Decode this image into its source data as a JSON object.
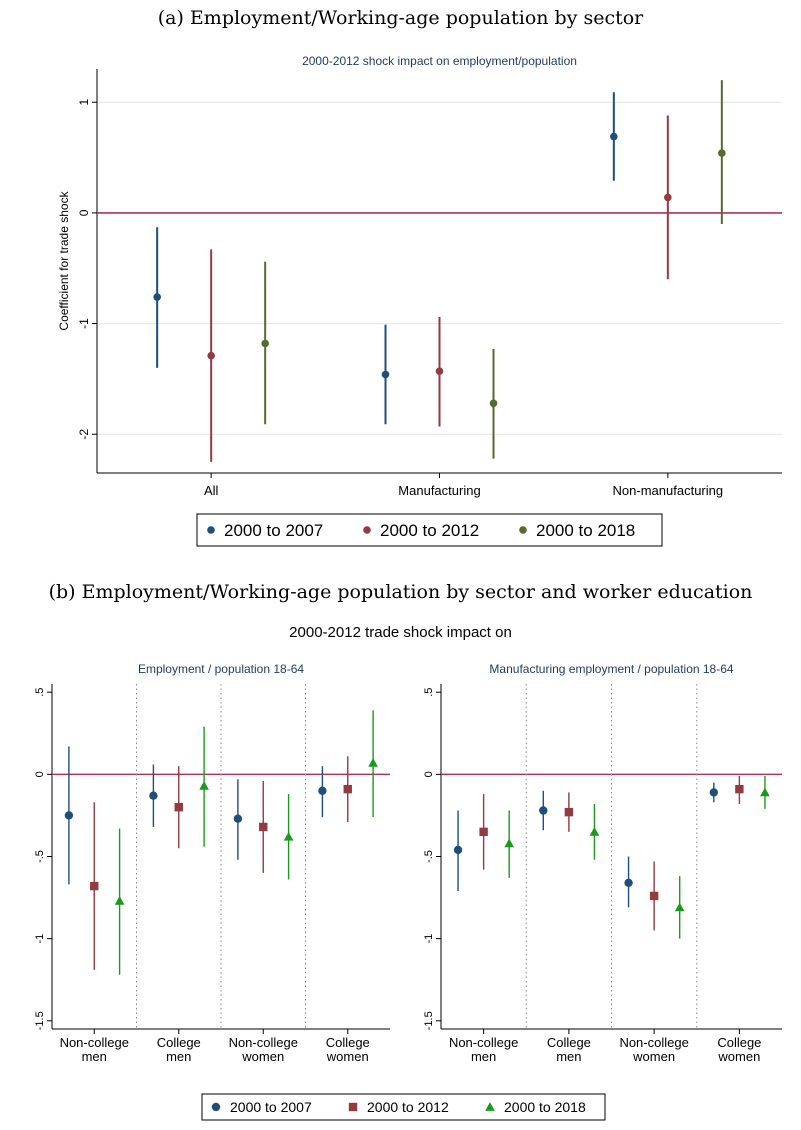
{
  "panel_a": {
    "caption": "(a) Employment/Working-age population by sector",
    "legend": [
      {
        "label": "2000 to 2007",
        "marker": "circle"
      },
      {
        "label": "2000 to 2012",
        "marker": "circle"
      },
      {
        "label": "2000 to 2018",
        "marker": "circle"
      }
    ]
  },
  "panel_b": {
    "caption": "(b) Employment/Working-age population by sector and worker education",
    "supertitle": "2000-2012 trade shock impact on",
    "legend": [
      {
        "label": "2000 to 2007",
        "marker": "circle"
      },
      {
        "label": "2000 to 2012",
        "marker": "square"
      },
      {
        "label": "2000 to 2018",
        "marker": "triangle"
      }
    ]
  },
  "colors": {
    "a_series": [
      "#1f4e79",
      "#943a42",
      "#556b2f"
    ],
    "b_series": [
      "#1f4e79",
      "#943a42",
      "#1a9a1a"
    ],
    "zero_line": "#b0305a",
    "grid": "#e6e6e6",
    "title_text": "#1f3b5f"
  },
  "chart_data": [
    {
      "type": "scatter",
      "subtype": "coefficient-plot-with-confidence-intervals",
      "title": "2000-2012 shock impact on employment/population",
      "xlabel": "",
      "ylabel": "Coefficient for trade shock",
      "categories": [
        "All",
        "Manufacturing",
        "Non-manufacturing"
      ],
      "ylim": [
        -2.35,
        1.3
      ],
      "yticks": [
        1,
        0,
        -1,
        -2
      ],
      "ytick_labels": [
        "1",
        "0",
        "-1",
        "-2"
      ],
      "grid": true,
      "reference_line": 0,
      "legend_position": "bottom",
      "series": [
        {
          "name": "2000 to 2007",
          "values": [
            -0.76,
            -1.46,
            0.69
          ],
          "ci_low": [
            -1.4,
            -1.91,
            0.29
          ],
          "ci_high": [
            -0.13,
            -1.01,
            1.09
          ]
        },
        {
          "name": "2000 to 2012",
          "values": [
            -1.29,
            -1.43,
            0.14
          ],
          "ci_low": [
            -2.25,
            -1.93,
            -0.6
          ],
          "ci_high": [
            -0.33,
            -0.94,
            0.88
          ]
        },
        {
          "name": "2000 to 2018",
          "values": [
            -1.18,
            -1.72,
            0.54
          ],
          "ci_low": [
            -1.91,
            -2.22,
            -0.1
          ],
          "ci_high": [
            -0.44,
            -1.23,
            1.2
          ]
        }
      ]
    },
    {
      "type": "scatter",
      "subtype": "coefficient-plot-with-confidence-intervals",
      "title": "Employment / population 18-64",
      "xlabel": "",
      "ylabel": "",
      "categories": [
        "Non-college\nmen",
        "College\nmen",
        "Non-college\nwomen",
        "College\nwomen"
      ],
      "ylim": [
        -1.55,
        0.55
      ],
      "yticks": [
        0.5,
        0,
        -0.5,
        -1,
        -1.5
      ],
      "ytick_labels": [
        ".5",
        "0",
        "-.5",
        "-1",
        "-1.5"
      ],
      "grid": false,
      "reference_line": 0,
      "legend_position": "bottom",
      "series": [
        {
          "name": "2000 to 2007",
          "values": [
            -0.25,
            -0.13,
            -0.27,
            -0.1
          ],
          "ci_low": [
            -0.67,
            -0.32,
            -0.52,
            -0.26
          ],
          "ci_high": [
            0.17,
            0.06,
            -0.03,
            0.05
          ]
        },
        {
          "name": "2000 to 2012",
          "values": [
            -0.68,
            -0.2,
            -0.32,
            -0.09
          ],
          "ci_low": [
            -1.19,
            -0.45,
            -0.6,
            -0.29
          ],
          "ci_high": [
            -0.17,
            0.05,
            -0.04,
            0.11
          ]
        },
        {
          "name": "2000 to 2018",
          "values": [
            -0.77,
            -0.07,
            -0.38,
            0.07
          ],
          "ci_low": [
            -1.22,
            -0.44,
            -0.64,
            -0.26
          ],
          "ci_high": [
            -0.33,
            0.29,
            -0.12,
            0.39
          ]
        }
      ]
    },
    {
      "type": "scatter",
      "subtype": "coefficient-plot-with-confidence-intervals",
      "title": "Manufacturing employment / population 18-64",
      "xlabel": "",
      "ylabel": "",
      "categories": [
        "Non-college\nmen",
        "College\nmen",
        "Non-college\nwomen",
        "College\nwomen"
      ],
      "ylim": [
        -1.55,
        0.55
      ],
      "yticks": [
        0.5,
        0,
        -0.5,
        -1,
        -1.5
      ],
      "ytick_labels": [
        ".5",
        "0",
        "-.5",
        "-1",
        "-1.5"
      ],
      "grid": false,
      "reference_line": 0,
      "legend_position": "bottom",
      "series": [
        {
          "name": "2000 to 2007",
          "values": [
            -0.46,
            -0.22,
            -0.66,
            -0.11
          ],
          "ci_low": [
            -0.71,
            -0.34,
            -0.81,
            -0.17
          ],
          "ci_high": [
            -0.22,
            -0.1,
            -0.5,
            -0.05
          ]
        },
        {
          "name": "2000 to 2012",
          "values": [
            -0.35,
            -0.23,
            -0.74,
            -0.09
          ],
          "ci_low": [
            -0.58,
            -0.35,
            -0.95,
            -0.18
          ],
          "ci_high": [
            -0.12,
            -0.11,
            -0.53,
            -0.01
          ]
        },
        {
          "name": "2000 to 2018",
          "values": [
            -0.42,
            -0.35,
            -0.81,
            -0.11
          ],
          "ci_low": [
            -0.63,
            -0.52,
            -1.0,
            -0.21
          ],
          "ci_high": [
            -0.22,
            -0.18,
            -0.62,
            -0.01
          ]
        }
      ]
    }
  ]
}
